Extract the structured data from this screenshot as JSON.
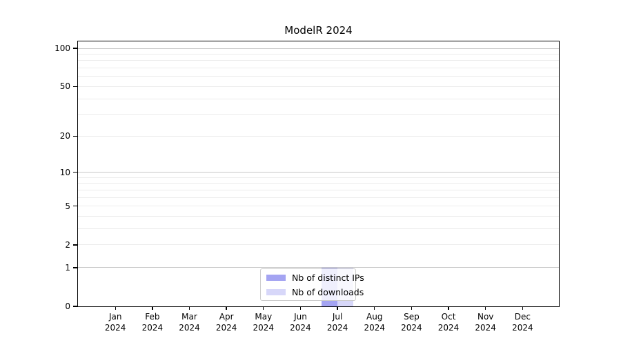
{
  "chart_data": {
    "type": "bar",
    "title": "ModelR 2024",
    "categories": [
      "Jan",
      "Feb",
      "Mar",
      "Apr",
      "May",
      "Jun",
      "Jul",
      "Aug",
      "Sep",
      "Oct",
      "Nov",
      "Dec"
    ],
    "category_year": "2024",
    "series": [
      {
        "name": "Nb of distinct IPs",
        "color": "#a4a4f2",
        "values": [
          0,
          0,
          0,
          0,
          0,
          0,
          1,
          0,
          0,
          0,
          0,
          0
        ]
      },
      {
        "name": "Nb of downloads",
        "color": "#d7d7f9",
        "values": [
          0,
          0,
          0,
          0,
          0,
          0,
          1,
          0,
          0,
          0,
          0,
          0
        ]
      }
    ],
    "yticks": [
      0,
      1,
      2,
      5,
      10,
      20,
      50,
      100
    ],
    "yscale": "log1p",
    "ylim": [
      0,
      113
    ],
    "grid": {
      "on": true,
      "major_values": [
        1,
        10,
        100
      ],
      "minor_values": [
        2,
        3,
        4,
        5,
        6,
        7,
        8,
        9,
        20,
        30,
        40,
        50,
        60,
        70,
        80,
        90
      ],
      "major_color": "#c6c6c6",
      "minor_color": "#ececec"
    },
    "legend": {
      "position": "lower center inside",
      "entries": [
        "Nb of distinct IPs",
        "Nb of downloads"
      ]
    },
    "colors": {
      "axis": "#000000",
      "background": "#ffffff",
      "legend_border": "#cccccc"
    }
  }
}
